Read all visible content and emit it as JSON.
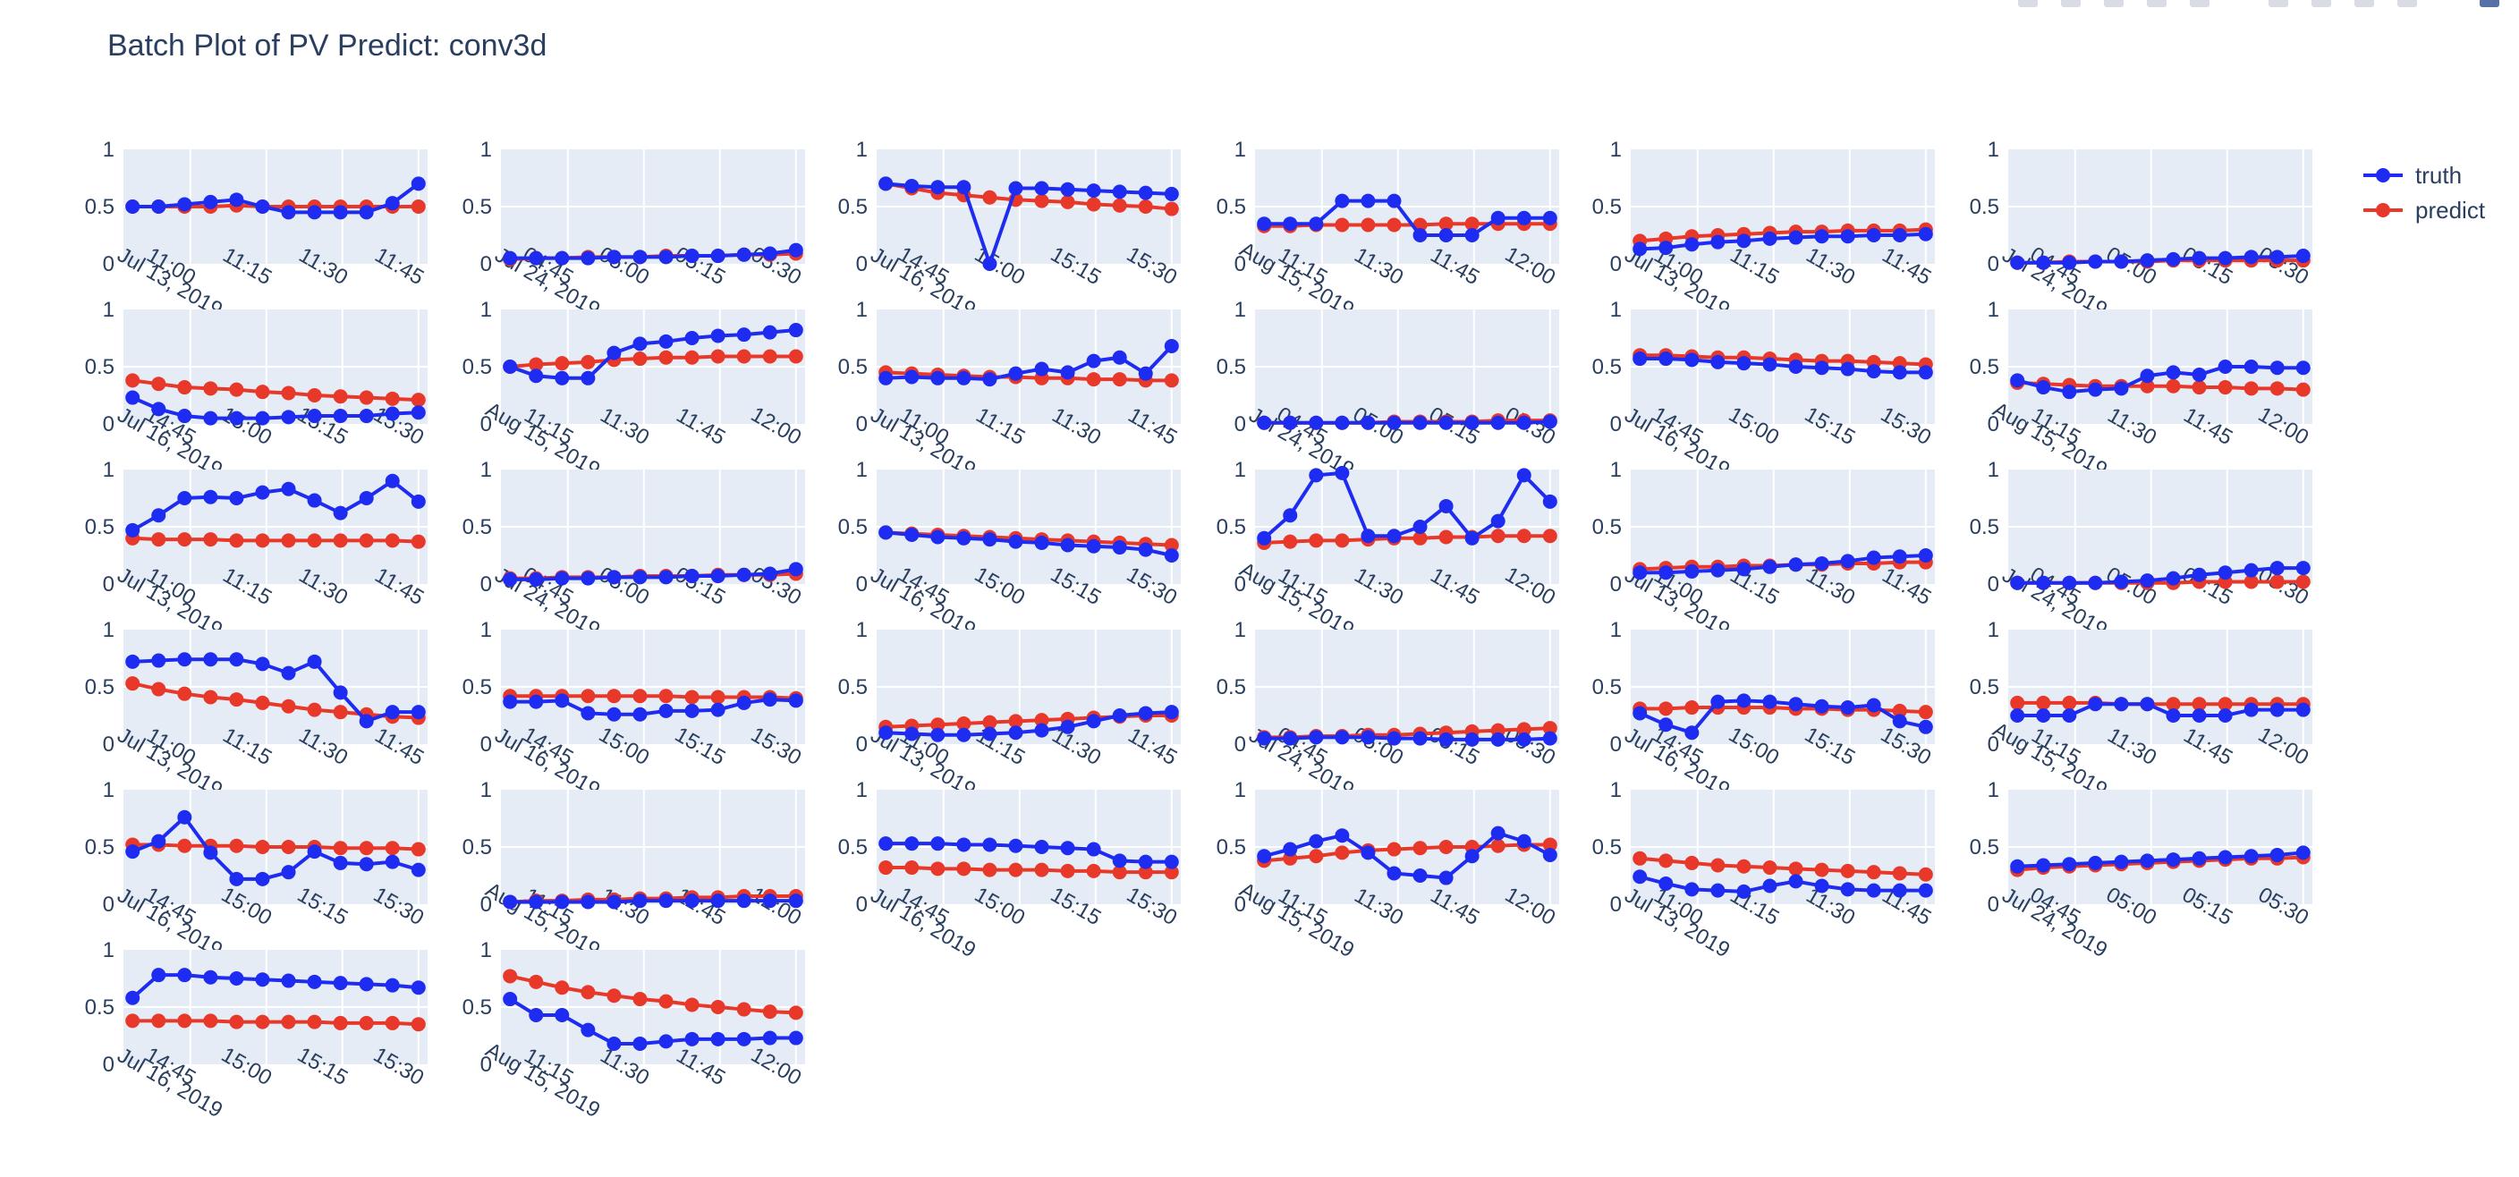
{
  "title": "Batch Plot of PV Predict: conv3d",
  "legend": [
    {
      "name": "truth",
      "color": "#1e2bf0"
    },
    {
      "name": "predict",
      "color": "#e8382a"
    }
  ],
  "colors": {
    "plot_bg": "#e5ecf6",
    "grid": "#ffffff",
    "text": "#2a3f5f"
  },
  "modebar": {
    "icons": [
      "camera-icon",
      "zoom-icon",
      "pan-icon",
      "select-icon",
      "lasso-icon",
      "zoom-in-icon",
      "zoom-out-icon",
      "autoscale-icon",
      "reset-icon",
      "plotly-logo"
    ]
  },
  "chart_data": {
    "type": "line",
    "layout": "grid 6 rows x 6 columns, 32 subplots",
    "ylim": [
      0,
      1
    ],
    "yticks": [
      "0",
      "0.5",
      "1"
    ],
    "legend_position": "top-right",
    "grid": true,
    "time_windows": {
      "A": {
        "date": "Jul 13, 2019",
        "ticks": [
          "11:00",
          "11:15",
          "11:30",
          "11:45"
        ]
      },
      "B": {
        "date": "Jul 24, 2019",
        "ticks": [
          "04:45",
          "05:00",
          "05:15",
          "05:30"
        ]
      },
      "C": {
        "date": "Jul 16, 2019",
        "ticks": [
          "14:45",
          "15:00",
          "15:15",
          "15:30"
        ]
      },
      "D": {
        "date": "Aug 15, 2019",
        "ticks": [
          "11:15",
          "11:30",
          "11:45",
          "12:00"
        ]
      }
    },
    "subplots": [
      {
        "window": "A",
        "truth": [
          0.5,
          0.5,
          0.52,
          0.54,
          0.56,
          0.5,
          0.45,
          0.45,
          0.45,
          0.45,
          0.53,
          0.7
        ],
        "predict": [
          0.5,
          0.5,
          0.5,
          0.5,
          0.51,
          0.5,
          0.5,
          0.5,
          0.5,
          0.5,
          0.5,
          0.5
        ]
      },
      {
        "window": "B",
        "truth": [
          0.05,
          0.05,
          0.05,
          0.05,
          0.06,
          0.06,
          0.06,
          0.07,
          0.07,
          0.08,
          0.09,
          0.12
        ],
        "predict": [
          0.04,
          0.05,
          0.05,
          0.06,
          0.06,
          0.06,
          0.07,
          0.07,
          0.07,
          0.08,
          0.08,
          0.09
        ]
      },
      {
        "window": "C",
        "truth": [
          0.7,
          0.68,
          0.67,
          0.67,
          0.0,
          0.66,
          0.66,
          0.65,
          0.64,
          0.63,
          0.62,
          0.61
        ],
        "predict": [
          0.7,
          0.66,
          0.62,
          0.6,
          0.58,
          0.56,
          0.55,
          0.54,
          0.52,
          0.51,
          0.5,
          0.48
        ]
      },
      {
        "window": "D",
        "truth": [
          0.35,
          0.35,
          0.35,
          0.55,
          0.55,
          0.55,
          0.25,
          0.25,
          0.25,
          0.4,
          0.4,
          0.4
        ],
        "predict": [
          0.33,
          0.33,
          0.34,
          0.34,
          0.34,
          0.34,
          0.34,
          0.35,
          0.35,
          0.35,
          0.35,
          0.35
        ]
      },
      {
        "window": "A",
        "truth": [
          0.13,
          0.14,
          0.17,
          0.19,
          0.2,
          0.22,
          0.23,
          0.24,
          0.24,
          0.25,
          0.25,
          0.26
        ],
        "predict": [
          0.2,
          0.22,
          0.24,
          0.25,
          0.26,
          0.27,
          0.28,
          0.28,
          0.29,
          0.29,
          0.29,
          0.3
        ]
      },
      {
        "window": "B",
        "truth": [
          0.01,
          0.01,
          0.01,
          0.02,
          0.02,
          0.03,
          0.04,
          0.05,
          0.05,
          0.06,
          0.06,
          0.07
        ],
        "predict": [
          0.01,
          0.01,
          0.02,
          0.02,
          0.02,
          0.02,
          0.03,
          0.03,
          0.03,
          0.03,
          0.03,
          0.03
        ]
      },
      {
        "window": "C",
        "truth": [
          0.23,
          0.13,
          0.07,
          0.05,
          0.05,
          0.05,
          0.06,
          0.07,
          0.07,
          0.07,
          0.09,
          0.1
        ],
        "predict": [
          0.38,
          0.35,
          0.32,
          0.31,
          0.3,
          0.28,
          0.27,
          0.25,
          0.24,
          0.23,
          0.22,
          0.21
        ]
      },
      {
        "window": "D",
        "truth": [
          0.5,
          0.42,
          0.4,
          0.4,
          0.62,
          0.7,
          0.72,
          0.75,
          0.77,
          0.78,
          0.8,
          0.82
        ],
        "predict": [
          0.5,
          0.52,
          0.53,
          0.54,
          0.56,
          0.57,
          0.58,
          0.58,
          0.59,
          0.59,
          0.59,
          0.59
        ]
      },
      {
        "window": "A",
        "truth": [
          0.4,
          0.41,
          0.4,
          0.4,
          0.39,
          0.44,
          0.48,
          0.45,
          0.55,
          0.58,
          0.44,
          0.68
        ],
        "predict": [
          0.45,
          0.44,
          0.43,
          0.42,
          0.41,
          0.41,
          0.4,
          0.4,
          0.39,
          0.39,
          0.38,
          0.38
        ]
      },
      {
        "window": "B",
        "truth": [
          0.01,
          0.01,
          0.01,
          0.01,
          0.01,
          0.01,
          0.01,
          0.01,
          0.01,
          0.01,
          0.01,
          0.02
        ],
        "predict": [
          0.01,
          0.01,
          0.01,
          0.01,
          0.01,
          0.02,
          0.02,
          0.02,
          0.02,
          0.03,
          0.03,
          0.03
        ]
      },
      {
        "window": "C",
        "truth": [
          0.57,
          0.57,
          0.56,
          0.54,
          0.53,
          0.52,
          0.5,
          0.49,
          0.48,
          0.46,
          0.45,
          0.45
        ],
        "predict": [
          0.6,
          0.6,
          0.59,
          0.58,
          0.58,
          0.57,
          0.56,
          0.55,
          0.55,
          0.54,
          0.53,
          0.52
        ]
      },
      {
        "window": "D",
        "truth": [
          0.38,
          0.32,
          0.28,
          0.3,
          0.31,
          0.42,
          0.45,
          0.43,
          0.5,
          0.5,
          0.49,
          0.49
        ],
        "predict": [
          0.36,
          0.35,
          0.34,
          0.33,
          0.33,
          0.33,
          0.33,
          0.32,
          0.32,
          0.31,
          0.31,
          0.3
        ]
      },
      {
        "window": "A",
        "truth": [
          0.47,
          0.6,
          0.75,
          0.76,
          0.75,
          0.8,
          0.83,
          0.73,
          0.62,
          0.75,
          0.9,
          0.72
        ],
        "predict": [
          0.4,
          0.39,
          0.39,
          0.39,
          0.38,
          0.38,
          0.38,
          0.38,
          0.38,
          0.38,
          0.38,
          0.37
        ]
      },
      {
        "window": "B",
        "truth": [
          0.04,
          0.04,
          0.05,
          0.05,
          0.06,
          0.06,
          0.06,
          0.07,
          0.07,
          0.08,
          0.09,
          0.13
        ],
        "predict": [
          0.05,
          0.05,
          0.06,
          0.06,
          0.06,
          0.07,
          0.07,
          0.07,
          0.08,
          0.08,
          0.08,
          0.09
        ]
      },
      {
        "window": "C",
        "truth": [
          0.45,
          0.43,
          0.41,
          0.4,
          0.39,
          0.37,
          0.36,
          0.34,
          0.33,
          0.32,
          0.3,
          0.25
        ],
        "predict": [
          0.45,
          0.44,
          0.43,
          0.42,
          0.41,
          0.4,
          0.39,
          0.38,
          0.37,
          0.36,
          0.35,
          0.34
        ]
      },
      {
        "window": "D",
        "truth": [
          0.4,
          0.6,
          0.95,
          0.97,
          0.42,
          0.42,
          0.5,
          0.68,
          0.4,
          0.55,
          0.95,
          0.72
        ],
        "predict": [
          0.36,
          0.37,
          0.38,
          0.38,
          0.39,
          0.4,
          0.4,
          0.41,
          0.41,
          0.42,
          0.42,
          0.42
        ]
      },
      {
        "window": "A",
        "truth": [
          0.1,
          0.1,
          0.11,
          0.12,
          0.13,
          0.15,
          0.17,
          0.18,
          0.2,
          0.23,
          0.24,
          0.25
        ],
        "predict": [
          0.13,
          0.14,
          0.15,
          0.15,
          0.16,
          0.16,
          0.17,
          0.17,
          0.18,
          0.18,
          0.19,
          0.19
        ]
      },
      {
        "window": "B",
        "truth": [
          0.01,
          0.01,
          0.01,
          0.01,
          0.02,
          0.03,
          0.05,
          0.08,
          0.1,
          0.12,
          0.14,
          0.14
        ],
        "predict": [
          0.01,
          0.01,
          0.01,
          0.01,
          0.01,
          0.01,
          0.01,
          0.02,
          0.02,
          0.02,
          0.02,
          0.02
        ]
      },
      {
        "window": "A",
        "truth": [
          0.72,
          0.73,
          0.74,
          0.74,
          0.74,
          0.7,
          0.62,
          0.72,
          0.45,
          0.2,
          0.28,
          0.28
        ],
        "predict": [
          0.53,
          0.48,
          0.44,
          0.41,
          0.39,
          0.36,
          0.33,
          0.3,
          0.28,
          0.26,
          0.24,
          0.23
        ]
      },
      {
        "window": "C",
        "truth": [
          0.37,
          0.37,
          0.38,
          0.27,
          0.26,
          0.26,
          0.29,
          0.29,
          0.3,
          0.36,
          0.39,
          0.38
        ],
        "predict": [
          0.42,
          0.42,
          0.42,
          0.42,
          0.42,
          0.42,
          0.42,
          0.41,
          0.41,
          0.41,
          0.41,
          0.4
        ]
      },
      {
        "window": "A",
        "truth": [
          0.1,
          0.09,
          0.08,
          0.08,
          0.09,
          0.1,
          0.12,
          0.15,
          0.2,
          0.25,
          0.27,
          0.28
        ],
        "predict": [
          0.15,
          0.16,
          0.17,
          0.18,
          0.19,
          0.2,
          0.21,
          0.22,
          0.23,
          0.24,
          0.25,
          0.25
        ]
      },
      {
        "window": "B",
        "truth": [
          0.05,
          0.05,
          0.06,
          0.06,
          0.06,
          0.05,
          0.05,
          0.04,
          0.04,
          0.04,
          0.04,
          0.05
        ],
        "predict": [
          0.06,
          0.06,
          0.07,
          0.07,
          0.08,
          0.08,
          0.09,
          0.1,
          0.11,
          0.12,
          0.13,
          0.14
        ]
      },
      {
        "window": "C",
        "truth": [
          0.27,
          0.17,
          0.1,
          0.37,
          0.38,
          0.37,
          0.35,
          0.33,
          0.32,
          0.34,
          0.2,
          0.15
        ],
        "predict": [
          0.31,
          0.31,
          0.32,
          0.32,
          0.32,
          0.32,
          0.31,
          0.31,
          0.3,
          0.3,
          0.29,
          0.28
        ]
      },
      {
        "window": "D",
        "truth": [
          0.25,
          0.25,
          0.25,
          0.35,
          0.35,
          0.35,
          0.25,
          0.25,
          0.25,
          0.3,
          0.3,
          0.3
        ],
        "predict": [
          0.36,
          0.36,
          0.36,
          0.36,
          0.35,
          0.35,
          0.35,
          0.35,
          0.35,
          0.35,
          0.35,
          0.35
        ]
      },
      {
        "window": "C",
        "truth": [
          0.46,
          0.55,
          0.76,
          0.45,
          0.22,
          0.22,
          0.28,
          0.46,
          0.36,
          0.35,
          0.37,
          0.3
        ],
        "predict": [
          0.52,
          0.52,
          0.51,
          0.51,
          0.51,
          0.5,
          0.5,
          0.5,
          0.49,
          0.49,
          0.49,
          0.48
        ]
      },
      {
        "window": "D",
        "truth": [
          0.02,
          0.02,
          0.02,
          0.02,
          0.02,
          0.03,
          0.03,
          0.03,
          0.03,
          0.03,
          0.03,
          0.03
        ],
        "predict": [
          0.02,
          0.03,
          0.03,
          0.04,
          0.04,
          0.05,
          0.05,
          0.06,
          0.06,
          0.07,
          0.07,
          0.07
        ]
      },
      {
        "window": "C",
        "truth": [
          0.53,
          0.53,
          0.53,
          0.52,
          0.52,
          0.51,
          0.5,
          0.49,
          0.48,
          0.38,
          0.37,
          0.37
        ],
        "predict": [
          0.32,
          0.32,
          0.31,
          0.31,
          0.3,
          0.3,
          0.3,
          0.29,
          0.29,
          0.28,
          0.28,
          0.28
        ]
      },
      {
        "window": "D",
        "truth": [
          0.42,
          0.48,
          0.55,
          0.6,
          0.45,
          0.27,
          0.25,
          0.23,
          0.42,
          0.62,
          0.55,
          0.43
        ],
        "predict": [
          0.38,
          0.4,
          0.42,
          0.45,
          0.47,
          0.48,
          0.49,
          0.5,
          0.5,
          0.51,
          0.52,
          0.52
        ]
      },
      {
        "window": "A",
        "truth": [
          0.24,
          0.18,
          0.13,
          0.12,
          0.11,
          0.16,
          0.2,
          0.16,
          0.13,
          0.12,
          0.12,
          0.12
        ],
        "predict": [
          0.4,
          0.38,
          0.36,
          0.34,
          0.33,
          0.32,
          0.31,
          0.3,
          0.29,
          0.28,
          0.27,
          0.26
        ]
      },
      {
        "window": "B",
        "truth": [
          0.33,
          0.34,
          0.35,
          0.36,
          0.37,
          0.38,
          0.39,
          0.4,
          0.41,
          0.42,
          0.43,
          0.45
        ],
        "predict": [
          0.3,
          0.32,
          0.33,
          0.34,
          0.35,
          0.36,
          0.37,
          0.38,
          0.39,
          0.4,
          0.4,
          0.41
        ]
      },
      {
        "window": "C",
        "truth": [
          0.58,
          0.78,
          0.78,
          0.76,
          0.75,
          0.74,
          0.73,
          0.72,
          0.71,
          0.7,
          0.69,
          0.67
        ],
        "predict": [
          0.38,
          0.38,
          0.38,
          0.38,
          0.37,
          0.37,
          0.37,
          0.37,
          0.36,
          0.36,
          0.36,
          0.35
        ]
      },
      {
        "window": "D",
        "truth": [
          0.57,
          0.43,
          0.43,
          0.3,
          0.18,
          0.18,
          0.2,
          0.22,
          0.22,
          0.22,
          0.23,
          0.23
        ],
        "predict": [
          0.77,
          0.72,
          0.67,
          0.63,
          0.6,
          0.57,
          0.55,
          0.52,
          0.5,
          0.48,
          0.46,
          0.45
        ]
      }
    ]
  }
}
